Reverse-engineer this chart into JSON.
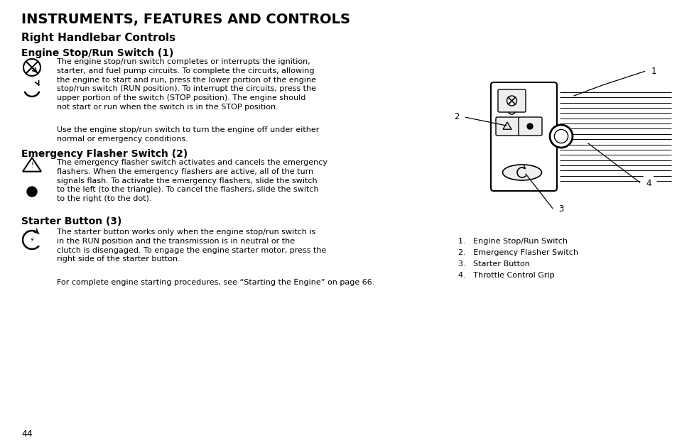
{
  "bg_color": "#ffffff",
  "title1": "INSTRUMENTS, FEATURES AND CONTROLS",
  "title2": "Right Handlebar Controls",
  "section1_heading": "Engine Stop/Run Switch (1)",
  "section1_para1": "The engine stop/run switch completes or interrupts the ignition,\nstarter, and fuel pump circuits. To complete the circuits, allowing\nthe engine to start and run, press the lower portion of the engine\nstop/run switch (RUN position). To interrupt the circuits, press the\nupper portion of the switch (STOP position). The engine should\nnot start or run when the switch is in the STOP position.",
  "section1_para2": "Use the engine stop/run switch to turn the engine off under either\nnormal or emergency conditions.",
  "section2_heading": "Emergency Flasher Switch (2)",
  "section2_para": "The emergency flasher switch activates and cancels the emergency\nflashers. When the emergency flashers are active, all of the turn\nsignals flash. To activate the emergency flashers, slide the switch\nto the left (to the triangle). To cancel the flashers, slide the switch\nto the right (to the dot).",
  "section3_heading": "Starter Button (3)",
  "section3_para1": "The starter button works only when the engine stop/run switch is\nin the RUN position and the transmission is in neutral or the\nclutch is disengaged. To engage the engine starter motor, press the\nright side of the starter button.",
  "section3_para2": "For complete engine starting procedures, see “Starting the Engine” on page 66.",
  "page_number": "44",
  "legend": [
    "1.   Engine Stop/Run Switch",
    "2.   Emergency Flasher Switch",
    "3.   Starter Button",
    "4.   Throttle Control Grip"
  ],
  "title1_fontsize": 14,
  "title2_fontsize": 11,
  "heading_fontsize": 10,
  "body_fontsize": 8,
  "page_fontsize": 9
}
